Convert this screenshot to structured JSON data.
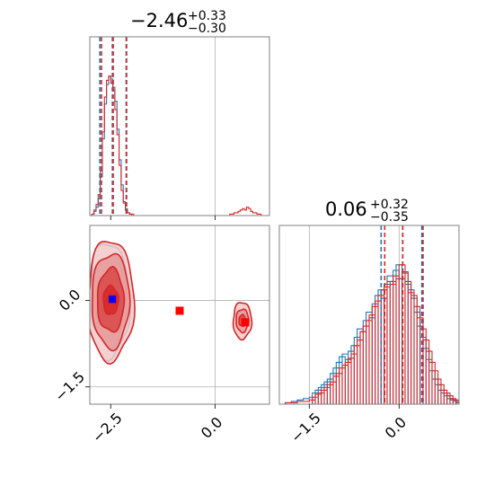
{
  "chart_data": {
    "type": "corner",
    "colors": {
      "series_a": "#1f77b4",
      "series_b": "#d62728",
      "marker_a": "#0000ff",
      "marker_b": "#ff0000",
      "grid": "#b0b0b0"
    },
    "panels": [
      {
        "id": "hist_param1",
        "type": "histogram",
        "title": {
          "main": "−2.46",
          "sup": "+0.33",
          "sub": "−0.30"
        },
        "xlim": [
          -3.0,
          1.3
        ],
        "xticks": [
          -2.5,
          0.0
        ],
        "grid_x": [
          0.0
        ],
        "series": [
          {
            "color_key": "series_a",
            "bins": [
              [
                -3.0,
                0
              ],
              [
                -2.95,
                1
              ],
              [
                -2.9,
                3
              ],
              [
                -2.85,
                6
              ],
              [
                -2.8,
                12
              ],
              [
                -2.75,
                28
              ],
              [
                -2.7,
                55
              ],
              [
                -2.65,
                80
              ],
              [
                -2.6,
                94
              ],
              [
                -2.55,
                100
              ],
              [
                -2.5,
                98
              ],
              [
                -2.45,
                92
              ],
              [
                -2.4,
                82
              ],
              [
                -2.35,
                62
              ],
              [
                -2.3,
                40
              ],
              [
                -2.25,
                22
              ],
              [
                -2.2,
                10
              ],
              [
                -2.15,
                5
              ],
              [
                -2.1,
                2
              ],
              [
                -2.05,
                1
              ],
              [
                -2.0,
                0
              ]
            ]
          },
          {
            "color_key": "series_b",
            "bins": [
              [
                -3.0,
                0
              ],
              [
                -2.95,
                1
              ],
              [
                -2.9,
                4
              ],
              [
                -2.85,
                8
              ],
              [
                -2.8,
                15
              ],
              [
                -2.75,
                32
              ],
              [
                -2.7,
                60
              ],
              [
                -2.65,
                85
              ],
              [
                -2.6,
                97
              ],
              [
                -2.55,
                100
              ],
              [
                -2.5,
                95
              ],
              [
                -2.45,
                90
              ],
              [
                -2.4,
                76
              ],
              [
                -2.35,
                58
              ],
              [
                -2.3,
                36
              ],
              [
                -2.25,
                18
              ],
              [
                -2.2,
                9
              ],
              [
                -2.15,
                4
              ],
              [
                -2.1,
                2
              ],
              [
                -2.05,
                1
              ],
              [
                -2.0,
                1
              ],
              [
                -1.95,
                0
              ],
              [
                0.3,
                0
              ],
              [
                0.35,
                1
              ],
              [
                0.4,
                1
              ],
              [
                0.45,
                2
              ],
              [
                0.5,
                2
              ],
              [
                0.55,
                3
              ],
              [
                0.6,
                4
              ],
              [
                0.65,
                5
              ],
              [
                0.7,
                4
              ],
              [
                0.75,
                6
              ],
              [
                0.8,
                5
              ],
              [
                0.85,
                3
              ],
              [
                0.9,
                2
              ],
              [
                0.95,
                2
              ],
              [
                1.0,
                1
              ],
              [
                1.05,
                1
              ],
              [
                1.1,
                0
              ]
            ]
          }
        ],
        "quantiles": [
          {
            "color_key": "series_a",
            "x": [
              -2.76,
              -2.46,
              -2.13
            ]
          },
          {
            "color_key": "series_b",
            "x": [
              -2.72,
              -2.44,
              -2.12
            ]
          }
        ]
      },
      {
        "id": "hist_param2",
        "type": "histogram",
        "title": {
          "main": "0.06",
          "sup": "+0.32",
          "sub": "−0.35"
        },
        "xlim": [
          -2.0,
          1.0
        ],
        "xticks": [
          -1.5,
          0.0
        ],
        "grid_x": [
          -1.5,
          0.0
        ],
        "series": [
          {
            "color_key": "series_a",
            "bins": [
              [
                -2.0,
                0
              ],
              [
                -1.9,
                1
              ],
              [
                -1.8,
                2
              ],
              [
                -1.7,
                3
              ],
              [
                -1.6,
                4
              ],
              [
                -1.5,
                5
              ],
              [
                -1.45,
                8
              ],
              [
                -1.4,
                10
              ],
              [
                -1.35,
                12
              ],
              [
                -1.3,
                14
              ],
              [
                -1.25,
                16
              ],
              [
                -1.2,
                18
              ],
              [
                -1.15,
                22
              ],
              [
                -1.1,
                26
              ],
              [
                -1.05,
                30
              ],
              [
                -1.0,
                34
              ],
              [
                -0.95,
                36
              ],
              [
                -0.9,
                32
              ],
              [
                -0.85,
                38
              ],
              [
                -0.8,
                42
              ],
              [
                -0.75,
                48
              ],
              [
                -0.7,
                54
              ],
              [
                -0.65,
                52
              ],
              [
                -0.6,
                60
              ],
              [
                -0.55,
                66
              ],
              [
                -0.5,
                62
              ],
              [
                -0.45,
                72
              ],
              [
                -0.4,
                78
              ],
              [
                -0.35,
                82
              ],
              [
                -0.3,
                76
              ],
              [
                -0.25,
                86
              ],
              [
                -0.2,
                92
              ],
              [
                -0.15,
                88
              ],
              [
                -0.1,
                96
              ],
              [
                -0.05,
                100
              ],
              [
                0.0,
                90
              ],
              [
                0.05,
                95
              ],
              [
                0.1,
                86
              ],
              [
                0.15,
                82
              ],
              [
                0.2,
                76
              ],
              [
                0.25,
                66
              ],
              [
                0.3,
                56
              ],
              [
                0.35,
                48
              ],
              [
                0.4,
                40
              ],
              [
                0.45,
                32
              ],
              [
                0.5,
                24
              ],
              [
                0.55,
                18
              ],
              [
                0.6,
                14
              ],
              [
                0.65,
                10
              ],
              [
                0.7,
                8
              ],
              [
                0.75,
                6
              ],
              [
                0.8,
                4
              ],
              [
                0.85,
                3
              ],
              [
                0.9,
                2
              ],
              [
                0.95,
                1
              ]
            ]
          },
          {
            "color_key": "series_b",
            "bins": [
              [
                -2.0,
                0
              ],
              [
                -1.9,
                1
              ],
              [
                -1.8,
                1
              ],
              [
                -1.7,
                2
              ],
              [
                -1.6,
                2
              ],
              [
                -1.5,
                3
              ],
              [
                -1.45,
                5
              ],
              [
                -1.4,
                7
              ],
              [
                -1.35,
                8
              ],
              [
                -1.3,
                10
              ],
              [
                -1.25,
                12
              ],
              [
                -1.2,
                14
              ],
              [
                -1.15,
                16
              ],
              [
                -1.1,
                20
              ],
              [
                -1.05,
                22
              ],
              [
                -1.0,
                26
              ],
              [
                -0.95,
                28
              ],
              [
                -0.9,
                30
              ],
              [
                -0.85,
                33
              ],
              [
                -0.8,
                36
              ],
              [
                -0.75,
                42
              ],
              [
                -0.7,
                46
              ],
              [
                -0.65,
                52
              ],
              [
                -0.6,
                56
              ],
              [
                -0.55,
                60
              ],
              [
                -0.5,
                64
              ],
              [
                -0.45,
                70
              ],
              [
                -0.4,
                74
              ],
              [
                -0.35,
                78
              ],
              [
                -0.3,
                82
              ],
              [
                -0.25,
                84
              ],
              [
                -0.2,
                88
              ],
              [
                -0.15,
                86
              ],
              [
                -0.1,
                92
              ],
              [
                -0.05,
                90
              ],
              [
                0.0,
                100
              ],
              [
                0.05,
                94
              ],
              [
                0.1,
                88
              ],
              [
                0.15,
                80
              ],
              [
                0.2,
                78
              ],
              [
                0.25,
                70
              ],
              [
                0.3,
                62
              ],
              [
                0.35,
                54
              ],
              [
                0.4,
                46
              ],
              [
                0.45,
                38
              ],
              [
                0.5,
                30
              ],
              [
                0.55,
                24
              ],
              [
                0.6,
                18
              ],
              [
                0.65,
                14
              ],
              [
                0.7,
                10
              ],
              [
                0.75,
                8
              ],
              [
                0.8,
                6
              ],
              [
                0.85,
                4
              ],
              [
                0.9,
                3
              ],
              [
                0.95,
                2
              ]
            ]
          }
        ],
        "quantiles": [
          {
            "color_key": "series_a",
            "x": [
              -0.3,
              0.06,
              0.38
            ]
          },
          {
            "color_key": "series_b",
            "x": [
              -0.24,
              0.06,
              0.4
            ]
          }
        ]
      },
      {
        "id": "scatter_2d",
        "type": "contour",
        "xlim": [
          -3.0,
          1.3
        ],
        "ylim": [
          -1.8,
          1.3
        ],
        "xticks": [
          -2.5,
          0.0
        ],
        "yticks": [
          -1.5,
          0.0
        ],
        "grid_x": [
          0.0
        ],
        "grid_y": [
          0.0,
          -1.5
        ],
        "contour_levels": [
          {
            "color_key": "series_a",
            "center": [
              -2.55,
              0.0
            ],
            "radii": [
              [
                0.5,
                1.0
              ],
              [
                0.42,
                0.78
              ],
              [
                0.3,
                0.5
              ]
            ]
          },
          {
            "color_key": "series_b",
            "center": [
              -2.5,
              0.0
            ],
            "radii": [
              [
                0.55,
                1.05
              ],
              [
                0.45,
                0.82
              ],
              [
                0.32,
                0.55
              ],
              [
                0.18,
                0.25
              ]
            ]
          },
          {
            "color_key": "series_b",
            "center": [
              0.65,
              -0.35
            ],
            "radii": [
              [
                0.22,
                0.32
              ],
              [
                0.15,
                0.2
              ],
              [
                0.08,
                0.1
              ]
            ]
          }
        ],
        "markers": [
          {
            "color_key": "marker_b",
            "x": -2.46,
            "y": 0.02
          },
          {
            "color_key": "marker_a",
            "x": -2.46,
            "y": 0.02
          },
          {
            "color_key": "marker_b",
            "x": -0.85,
            "y": -0.18
          },
          {
            "color_key": "marker_b",
            "x": 0.72,
            "y": -0.38
          }
        ]
      }
    ]
  }
}
